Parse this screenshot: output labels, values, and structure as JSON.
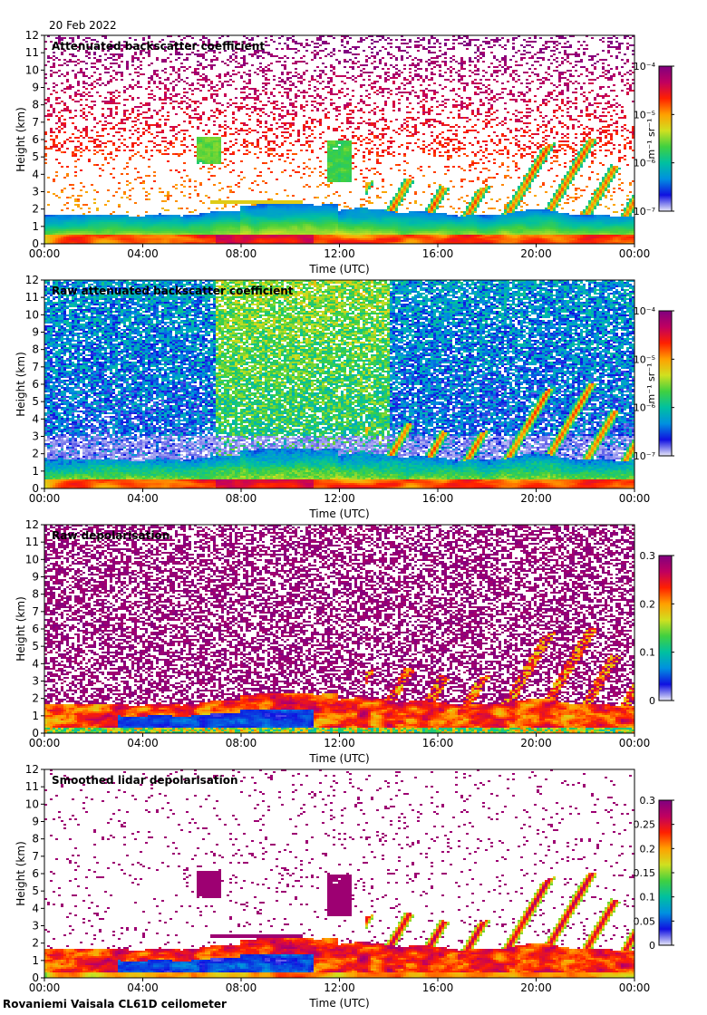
{
  "date": "20 Feb 2022",
  "footer": "Rovaniemi Vaisala CL61D ceilometer",
  "chart_data": [
    {
      "type": "heatmap",
      "title": "Attenuated backscatter coefficient",
      "xlabel": "Time (UTC)",
      "ylabel": "Height (km)",
      "x_ticks": [
        "00:00",
        "04:00",
        "08:00",
        "12:00",
        "16:00",
        "20:00",
        "00:00"
      ],
      "y_ticks": [
        "0",
        "1",
        "2",
        "3",
        "4",
        "5",
        "6",
        "7",
        "8",
        "9",
        "10",
        "11",
        "12"
      ],
      "ylim": [
        0,
        12
      ],
      "xlim_hours": [
        0,
        24
      ],
      "colorbar": {
        "label": "m⁻¹ sr⁻¹",
        "ticks": [
          "10⁻⁷",
          "10⁻⁶",
          "10⁻⁵",
          "10⁻⁴"
        ],
        "range": [
          1e-07,
          0.0001
        ],
        "scale": "log"
      },
      "mode": "backscatter"
    },
    {
      "type": "heatmap",
      "title": "Raw attenuated backscatter coefficient",
      "xlabel": "Time (UTC)",
      "ylabel": "Height (km)",
      "x_ticks": [
        "00:00",
        "04:00",
        "08:00",
        "12:00",
        "16:00",
        "20:00",
        "00:00"
      ],
      "y_ticks": [
        "0",
        "1",
        "2",
        "3",
        "4",
        "5",
        "6",
        "7",
        "8",
        "9",
        "10",
        "11",
        "12"
      ],
      "ylim": [
        0,
        12
      ],
      "xlim_hours": [
        0,
        24
      ],
      "colorbar": {
        "label": "m⁻¹ sr⁻¹",
        "ticks": [
          "10⁻⁷",
          "10⁻⁶",
          "10⁻⁵",
          "10⁻⁴"
        ],
        "range": [
          1e-07,
          0.0001
        ],
        "scale": "log"
      },
      "mode": "raw"
    },
    {
      "type": "heatmap",
      "title": "Raw depolarisation",
      "xlabel": "Time (UTC)",
      "ylabel": "Height (km)",
      "x_ticks": [
        "00:00",
        "04:00",
        "08:00",
        "12:00",
        "16:00",
        "20:00",
        "00:00"
      ],
      "y_ticks": [
        "0",
        "1",
        "2",
        "3",
        "4",
        "5",
        "6",
        "7",
        "8",
        "9",
        "10",
        "11",
        "12"
      ],
      "ylim": [
        0,
        12
      ],
      "xlim_hours": [
        0,
        24
      ],
      "colorbar": {
        "label": "",
        "ticks": [
          "0",
          "0.1",
          "0.2",
          "0.3"
        ],
        "range": [
          0,
          0.3
        ],
        "scale": "linear"
      },
      "mode": "rawdep"
    },
    {
      "type": "heatmap",
      "title": "Smoothed lidar depolarisation",
      "xlabel": "Time (UTC)",
      "ylabel": "Height (km)",
      "x_ticks": [
        "00:00",
        "04:00",
        "08:00",
        "12:00",
        "16:00",
        "20:00",
        "00:00"
      ],
      "y_ticks": [
        "0",
        "1",
        "2",
        "3",
        "4",
        "5",
        "6",
        "7",
        "8",
        "9",
        "10",
        "11",
        "12"
      ],
      "ylim": [
        0,
        12
      ],
      "xlim_hours": [
        0,
        24
      ],
      "colorbar": {
        "label": "",
        "ticks": [
          "0",
          "0.05",
          "0.1",
          "0.15",
          "0.2",
          "0.25",
          "0.3"
        ],
        "range": [
          0,
          0.3
        ],
        "scale": "linear"
      },
      "mode": "smoothdep"
    }
  ],
  "colors": {
    "colormap": [
      "#e8e8f8",
      "#1010e0",
      "#0090e0",
      "#00c0a0",
      "#40d040",
      "#d0e020",
      "#ffa000",
      "#ff2000",
      "#c00060",
      "#800080"
    ]
  }
}
